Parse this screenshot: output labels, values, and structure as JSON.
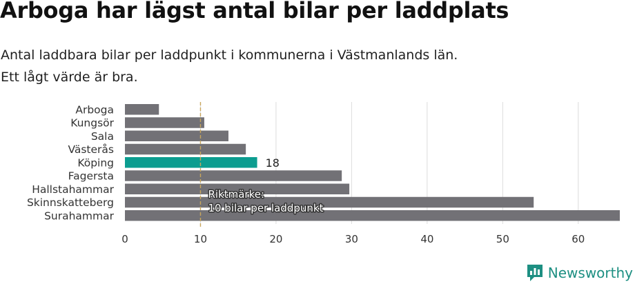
{
  "title": "Arboga har lägst antal bilar per laddplats",
  "subtitle": [
    "Antal laddbara bilar per laddpunkt i kommunerna i Västmanlands län.",
    "Ett lågt värde är bra."
  ],
  "brand": "Newsworthy",
  "colors": {
    "bar": "#727176",
    "highlight": "#0c9d90",
    "reference": "#c9a65c",
    "grid": "#dcdcdc",
    "brand": "#1d8f82"
  },
  "chart_data": {
    "type": "bar",
    "orientation": "horizontal",
    "categories": [
      "Arboga",
      "Kungsör",
      "Sala",
      "Västerås",
      "Köping",
      "Fagersta",
      "Hallstahammar",
      "Skinnskatteberg",
      "Surahammar"
    ],
    "values": [
      4.5,
      10.5,
      13.7,
      16,
      17.5,
      28.7,
      29.7,
      54.1,
      65.5
    ],
    "highlight_index": 4,
    "data_labels": {
      "4": "18"
    },
    "xlim": [
      0,
      65.5
    ],
    "xticks": [
      0,
      10,
      20,
      30,
      40,
      50,
      60
    ],
    "grid": true,
    "reference_line": {
      "value": 10,
      "label": [
        "Riktmärke:",
        "10 bilar per laddpunkt"
      ]
    }
  }
}
